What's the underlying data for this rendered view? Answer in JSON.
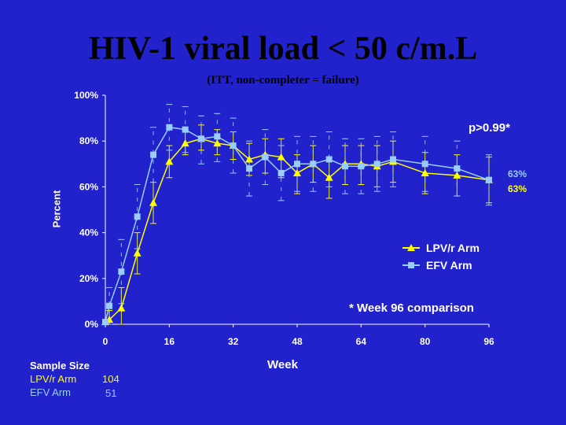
{
  "header": {
    "title": "HIV-1 viral load < 50 c/m.L",
    "subtitle": "(ITT, non-completer = failure)"
  },
  "colors": {
    "background": "#2222cc",
    "lpv": "#ffff00",
    "efv": "#99ccff",
    "axis": "#ffffff"
  },
  "chart_data": {
    "type": "line",
    "ylabel": "Percent",
    "xlabel": "Week",
    "xlim": [
      0,
      96
    ],
    "ylim": [
      0,
      100
    ],
    "x_ticks": [
      "0",
      "16",
      "32",
      "48",
      "64",
      "80",
      "96"
    ],
    "x_tick_values": [
      0,
      16,
      32,
      48,
      64,
      80,
      96
    ],
    "y_ticks": [
      "0%",
      "20%",
      "40%",
      "60%",
      "80%",
      "100%"
    ],
    "y_tick_values": [
      0,
      20,
      40,
      60,
      80,
      100
    ],
    "series": [
      {
        "name": "LPV/r Arm",
        "marker": "triangle",
        "color": "#ffff00",
        "x": [
          0,
          1,
          4,
          8,
          12,
          16,
          20,
          24,
          28,
          32,
          36,
          40,
          44,
          48,
          52,
          56,
          60,
          64,
          68,
          72,
          80,
          88,
          96
        ],
        "y": [
          1,
          2,
          7,
          31,
          53,
          71,
          79,
          81,
          79,
          78,
          72,
          74,
          73,
          66,
          70,
          64,
          70,
          70,
          69,
          71,
          66,
          65,
          63
        ],
        "error_low": [
          0,
          0,
          0,
          22,
          44,
          64,
          74,
          76,
          74,
          72,
          65,
          66,
          64,
          57,
          62,
          55,
          61,
          61,
          60,
          62,
          57,
          56,
          53
        ],
        "error_high": [
          0,
          6,
          16,
          40,
          62,
          78,
          85,
          87,
          85,
          84,
          79,
          81,
          81,
          74,
          78,
          73,
          78,
          78,
          78,
          80,
          75,
          74,
          73
        ]
      },
      {
        "name": "EFV Arm",
        "marker": "square",
        "color": "#99ccff",
        "x": [
          0,
          1,
          4,
          8,
          12,
          16,
          20,
          24,
          28,
          32,
          36,
          40,
          44,
          48,
          52,
          56,
          60,
          64,
          68,
          72,
          80,
          88,
          96
        ],
        "y": [
          1,
          8,
          23,
          47,
          74,
          86,
          85,
          81,
          82,
          78,
          68,
          73,
          66,
          70,
          70,
          72,
          69,
          69,
          70,
          72,
          70,
          68,
          63
        ],
        "error_low": [
          0,
          0,
          9,
          33,
          62,
          76,
          75,
          70,
          71,
          66,
          56,
          61,
          54,
          58,
          58,
          60,
          57,
          57,
          58,
          60,
          58,
          56,
          52
        ],
        "error_high": [
          0,
          16,
          37,
          61,
          86,
          96,
          95,
          91,
          92,
          90,
          80,
          85,
          78,
          82,
          82,
          84,
          81,
          81,
          82,
          84,
          82,
          80,
          74
        ]
      }
    ],
    "end_labels": [
      {
        "series": "EFV Arm",
        "text": "63%"
      },
      {
        "series": "LPV/r Arm",
        "text": "63%"
      }
    ],
    "annotations": {
      "p_value": "p>0.99*",
      "footnote": "* Week 96 comparison"
    },
    "sample_size": {
      "title": "Sample Size",
      "rows": [
        {
          "label": "LPV/r Arm",
          "n": "104"
        },
        {
          "label": "EFV Arm",
          "n": "51"
        }
      ]
    }
  }
}
